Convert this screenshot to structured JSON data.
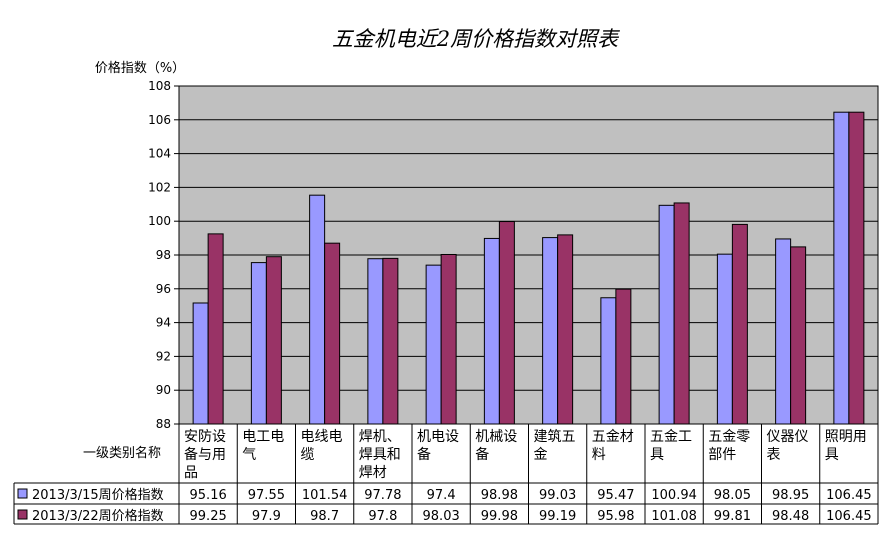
{
  "chart_data": {
    "type": "bar",
    "title": "五金机电近2周价格指数对照表",
    "ylabel": "价格指数（%）",
    "row_header": "一级类别名称",
    "ylim": [
      88,
      108
    ],
    "y_ticks": [
      "88",
      "90",
      "92",
      "94",
      "96",
      "98",
      "100",
      "102",
      "104",
      "106",
      "108"
    ],
    "grid": true,
    "legend": "bottom-table",
    "categories": [
      [
        "安防设",
        "备与用",
        "品"
      ],
      [
        "电工电",
        "气"
      ],
      [
        "电线电",
        "缆"
      ],
      [
        "焊机、",
        "焊具和",
        "焊材"
      ],
      [
        "机电设",
        "备"
      ],
      [
        "机械设",
        "备"
      ],
      [
        "建筑五",
        "金"
      ],
      [
        "五金材",
        "料"
      ],
      [
        "五金工",
        "具"
      ],
      [
        "五金零",
        "部件"
      ],
      [
        "仪器仪",
        "表"
      ],
      [
        "照明用",
        "具"
      ]
    ],
    "series": [
      {
        "name": "2013/3/15周价格指数",
        "color": "#9999ff",
        "values": [
          95.16,
          97.55,
          101.54,
          97.78,
          97.4,
          98.98,
          99.03,
          95.47,
          100.94,
          98.05,
          98.95,
          106.45
        ],
        "labels": [
          "95.16",
          "97.55",
          "101.54",
          "97.78",
          "97.4",
          "98.98",
          "99.03",
          "95.47",
          "100.94",
          "98.05",
          "98.95",
          "106.45"
        ]
      },
      {
        "name": "2013/3/22周价格指数",
        "color": "#993366",
        "values": [
          99.25,
          97.9,
          98.7,
          97.8,
          98.03,
          99.98,
          99.19,
          95.98,
          101.08,
          99.81,
          98.48,
          106.45
        ],
        "labels": [
          "99.25",
          "97.9",
          "98.7",
          "97.8",
          "98.03",
          "99.98",
          "99.19",
          "95.98",
          "101.08",
          "99.81",
          "98.48",
          "106.45"
        ]
      }
    ],
    "plot_background": "#c0c0c0"
  }
}
